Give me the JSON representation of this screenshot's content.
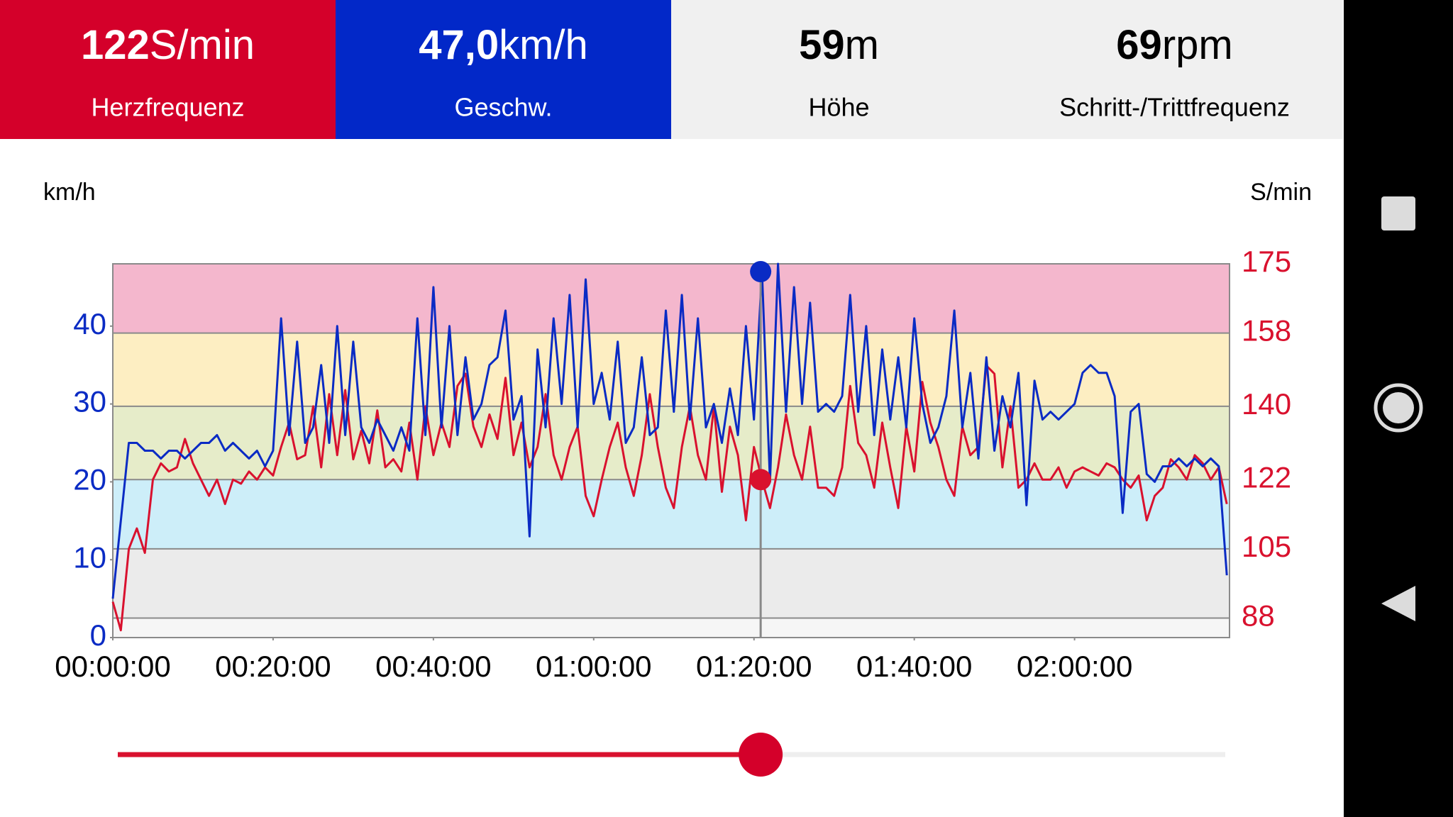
{
  "header": [
    {
      "value": "122",
      "unit": "S/min",
      "label": "Herzfrequenz",
      "color": "#d4002a",
      "text_color": "#ffffff"
    },
    {
      "value": "47,0",
      "unit": "km/h",
      "label": "Geschw.",
      "color": "#0228c8",
      "text_color": "#ffffff"
    },
    {
      "value": "59",
      "unit": "m",
      "label": "Höhe",
      "color": "#f0f0f0",
      "text_color": "#000000"
    },
    {
      "value": "69",
      "unit": "rpm",
      "label": "Schritt-/Trittfrequenz",
      "color": "#f0f0f0",
      "text_color": "#000000"
    }
  ],
  "chart_data": {
    "type": "line",
    "y_label": "km/h",
    "y2_label": "S/min",
    "x": [
      0,
      60,
      120,
      180,
      240,
      300,
      360,
      420,
      480,
      540,
      600,
      660,
      720,
      780,
      840,
      900,
      960,
      1020,
      1080,
      1140,
      1200,
      1260,
      1320,
      1380,
      1440,
      1500,
      1560,
      1620,
      1680,
      1740,
      1800,
      1860,
      1920,
      1980,
      2040,
      2100,
      2160,
      2220,
      2280,
      2340,
      2400,
      2460,
      2520,
      2580,
      2640,
      2700,
      2760,
      2820,
      2880,
      2940,
      3000,
      3060,
      3120,
      3180,
      3240,
      3300,
      3360,
      3420,
      3480,
      3540,
      3600,
      3660,
      3720,
      3780,
      3840,
      3900,
      3960,
      4020,
      4080,
      4140,
      4200,
      4260,
      4320,
      4380,
      4440,
      4500,
      4560,
      4620,
      4680,
      4740,
      4800,
      4860,
      4920,
      4980,
      5040,
      5100,
      5160,
      5220,
      5280,
      5340,
      5400,
      5460,
      5520,
      5580,
      5640,
      5700,
      5760,
      5820,
      5880,
      5940,
      6000,
      6060,
      6120,
      6180,
      6240,
      6300,
      6360,
      6420,
      6480,
      6540,
      6600,
      6660,
      6720,
      6780,
      6840,
      6900,
      6960,
      7020,
      7080,
      7140,
      7200,
      7260,
      7320,
      7380,
      7440,
      7500,
      7560,
      7620,
      7680,
      7740,
      7800,
      7860,
      7920,
      7980,
      8040,
      8100,
      8160,
      8220,
      8280,
      8340
    ],
    "xlim": [
      0,
      8360
    ],
    "xticks": [
      {
        "value": 0,
        "label": "00:00:00"
      },
      {
        "value": 1200,
        "label": "00:20:00"
      },
      {
        "value": 2400,
        "label": "00:40:00"
      },
      {
        "value": 3600,
        "label": "01:00:00"
      },
      {
        "value": 4800,
        "label": "01:20:00"
      },
      {
        "value": 6000,
        "label": "01:40:00"
      },
      {
        "value": 7200,
        "label": "02:00:00"
      }
    ],
    "ylim": [
      0,
      48
    ],
    "yticks": [
      0,
      10,
      20,
      30,
      40
    ],
    "y2lim": [
      83.2,
      175
    ],
    "y2ticks": [
      88,
      105,
      122,
      140,
      158,
      175
    ],
    "zone_colors": [
      "#f6f6f6",
      "#ebebeb",
      "#cdeef9",
      "#e6ecc9",
      "#fdeec2",
      "#f4b7cd"
    ],
    "series": [
      {
        "name": "Geschw.",
        "color": "#0a2bc4",
        "values": [
          5,
          15,
          25,
          25,
          24,
          24,
          23,
          24,
          24,
          23,
          24,
          25,
          25,
          26,
          24,
          25,
          24,
          23,
          24,
          22,
          24,
          41,
          26,
          38,
          25,
          27,
          35,
          25,
          40,
          26,
          38,
          27,
          25,
          28,
          26,
          24,
          27,
          24,
          41,
          26,
          45,
          27,
          40,
          26,
          36,
          28,
          30,
          35,
          36,
          42,
          28,
          31,
          13,
          37,
          27,
          41,
          30,
          44,
          27,
          46,
          30,
          34,
          28,
          38,
          25,
          27,
          36,
          26,
          27,
          42,
          29,
          44,
          28,
          41,
          27,
          30,
          25,
          32,
          26,
          40,
          28,
          47,
          20,
          48,
          29,
          45,
          30,
          43,
          29,
          30,
          29,
          31,
          44,
          29,
          40,
          26,
          37,
          28,
          36,
          27,
          41,
          30,
          25,
          27,
          31,
          42,
          27,
          34,
          23,
          36,
          24,
          31,
          27,
          34,
          17,
          33,
          28,
          29,
          28,
          29,
          30,
          34,
          35,
          34,
          34,
          31,
          16,
          29,
          30,
          21,
          20,
          22,
          22,
          23,
          22,
          23,
          22,
          23,
          22,
          8
        ]
      },
      {
        "name": "Herzfrequenz",
        "color": "#d9112e",
        "axis": "y2",
        "values": [
          92,
          85,
          105,
          110,
          104,
          122,
          126,
          124,
          125,
          132,
          126,
          122,
          118,
          122,
          116,
          122,
          121,
          124,
          122,
          125,
          123,
          130,
          136,
          127,
          128,
          140,
          125,
          143,
          128,
          144,
          127,
          134,
          126,
          139,
          125,
          127,
          124,
          136,
          122,
          140,
          128,
          136,
          130,
          145,
          148,
          135,
          130,
          138,
          132,
          147,
          128,
          136,
          125,
          130,
          143,
          128,
          122,
          130,
          135,
          118,
          113,
          122,
          130,
          136,
          125,
          118,
          128,
          143,
          130,
          120,
          115,
          130,
          140,
          128,
          122,
          140,
          119,
          135,
          128,
          112,
          130,
          122,
          115,
          125,
          138,
          128,
          122,
          135,
          120,
          120,
          118,
          125,
          145,
          131,
          128,
          120,
          136,
          125,
          115,
          135,
          124,
          146,
          136,
          130,
          122,
          118,
          135,
          128,
          130,
          150,
          148,
          125,
          140,
          120,
          122,
          126,
          122,
          122,
          125,
          120,
          124,
          125,
          124,
          123,
          126,
          125,
          122,
          120,
          123,
          112,
          118,
          120,
          127,
          125,
          122,
          128,
          126,
          122,
          125,
          116
        ]
      }
    ],
    "cursor": {
      "x": 4850,
      "speed": 47,
      "heart_rate": 122,
      "color": "#888888"
    }
  }
}
